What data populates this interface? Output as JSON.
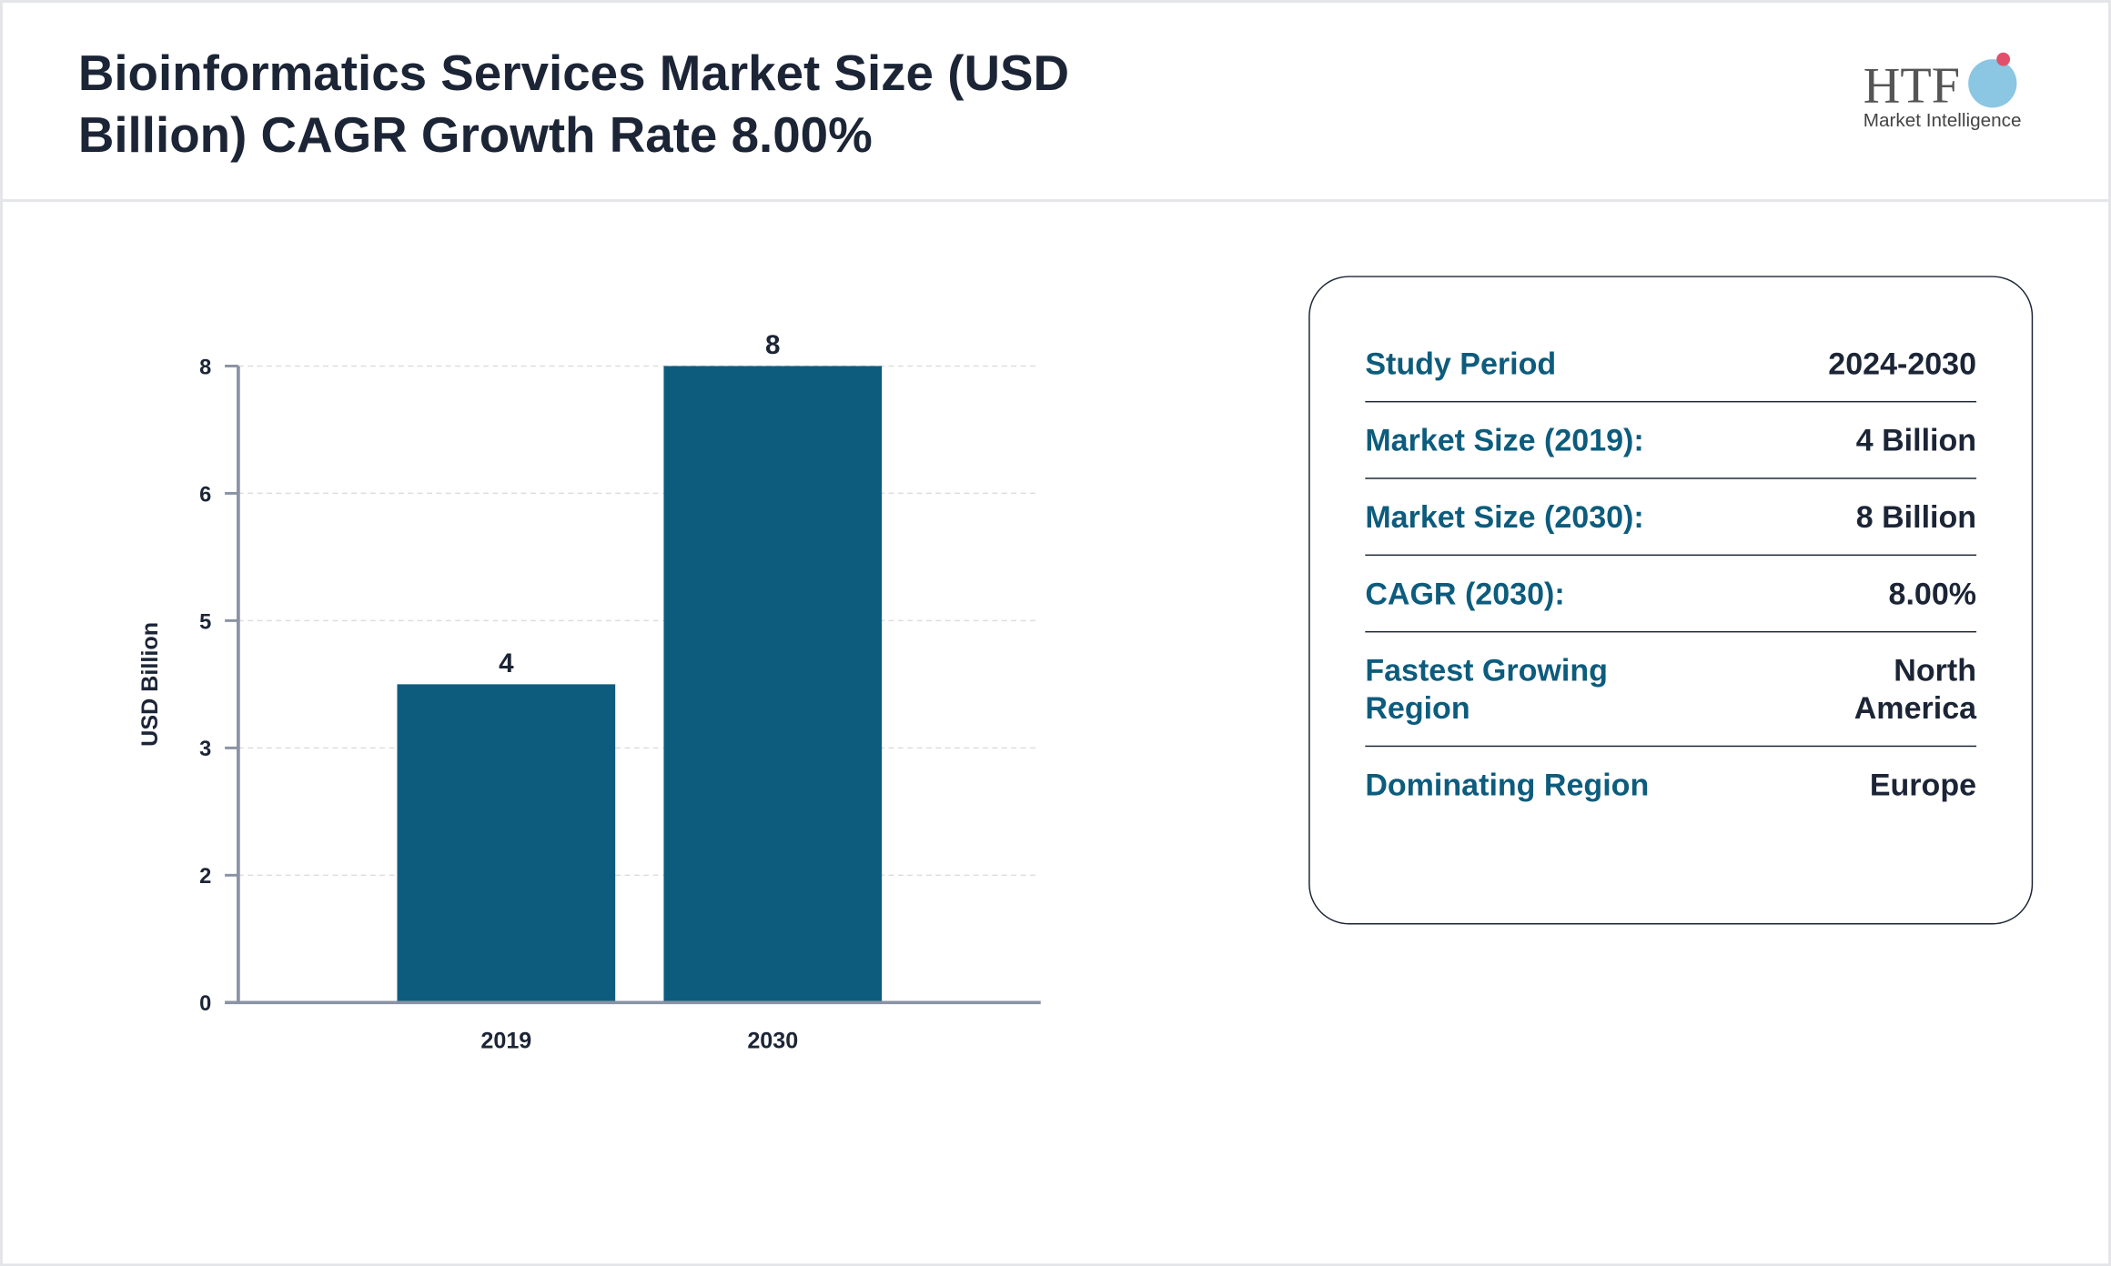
{
  "header": {
    "title": "Bioinformatics Services Market Size (USD Billion) CAGR Growth Rate 8.00%"
  },
  "logo": {
    "name": "HTF",
    "tagline": "Market Intelligence"
  },
  "chart_data": {
    "type": "bar",
    "categories": [
      "2019",
      "2030"
    ],
    "values": [
      4,
      8
    ],
    "color": "#0d5c7d",
    "y_label": "USD Billion",
    "ylim": [
      0,
      8
    ],
    "yticks": [
      0,
      {
        "value": 1.6,
        "label": "2"
      },
      {
        "value": 3.2,
        "label": "3"
      },
      {
        "value": 4.8,
        "label": "5"
      },
      {
        "value": 6.4,
        "label": "6"
      },
      8
    ],
    "grid": true
  },
  "table": {
    "rows": [
      [
        "Study Period",
        "2024-2030"
      ],
      [
        "Market Size (2019):",
        "4 Billion"
      ],
      [
        "Market Size (2030):",
        "8 Billion"
      ],
      [
        "CAGR (2030):",
        "8.00%"
      ],
      [
        "Fastest Growing Region",
        "North America"
      ],
      [
        "Dominating Region",
        "Europe"
      ]
    ]
  }
}
